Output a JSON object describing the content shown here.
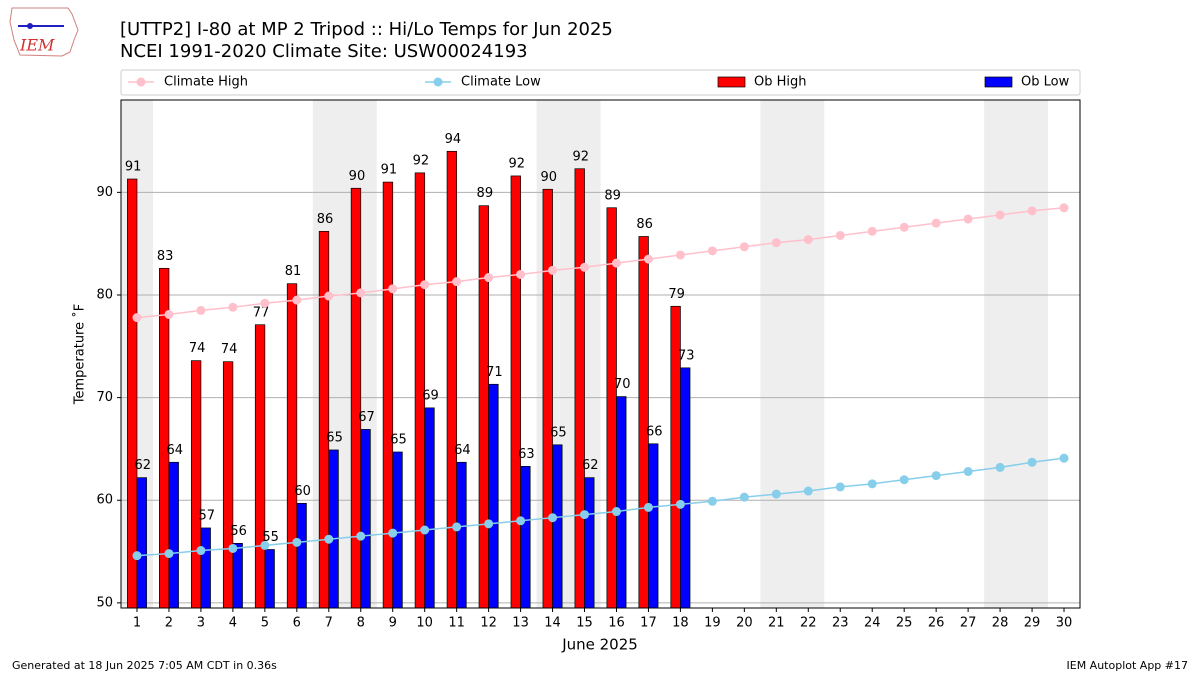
{
  "chart_data": {
    "type": "bar",
    "title": "[UTTP2] I-80 at MP 2 Tripod  :: Hi/Lo Temps for Jun 2025",
    "subtitle": "NCEI 1991-2020 Climate Site: USW00024193",
    "xlabel": "June 2025",
    "ylabel": "Temperature ˚F",
    "footer_left": "Generated at 18 Jun 2025 7:05 AM CDT in 0.36s",
    "footer_right": "IEM Autoplot App #17",
    "logo": "IEM",
    "x": [
      1,
      2,
      3,
      4,
      5,
      6,
      7,
      8,
      9,
      10,
      11,
      12,
      13,
      14,
      15,
      16,
      17,
      18,
      19,
      20,
      21,
      22,
      23,
      24,
      25,
      26,
      27,
      28,
      29,
      30
    ],
    "xlim": [
      0.5,
      30.5
    ],
    "xticks": [
      1,
      2,
      3,
      4,
      5,
      6,
      7,
      8,
      9,
      10,
      11,
      12,
      13,
      14,
      15,
      16,
      17,
      18,
      19,
      20,
      21,
      22,
      23,
      24,
      25,
      26,
      27,
      28,
      29,
      30
    ],
    "ylim": [
      49.5,
      99
    ],
    "yticks": [
      50,
      60,
      70,
      80,
      90
    ],
    "grid": true,
    "weekend_spans": [
      [
        0.5,
        1.5
      ],
      [
        6.5,
        8.5
      ],
      [
        13.5,
        15.5
      ],
      [
        20.5,
        22.5
      ],
      [
        27.5,
        29.5
      ]
    ],
    "series": [
      {
        "name": "Climate High",
        "kind": "line",
        "color": "#ffc0cb",
        "values": [
          77.8,
          78.1,
          78.5,
          78.8,
          79.2,
          79.5,
          79.9,
          80.2,
          80.6,
          81.0,
          81.3,
          81.7,
          82.0,
          82.4,
          82.7,
          83.1,
          83.5,
          83.9,
          84.3,
          84.7,
          85.1,
          85.4,
          85.8,
          86.2,
          86.6,
          87.0,
          87.4,
          87.8,
          88.2,
          88.5
        ]
      },
      {
        "name": "Climate Low",
        "kind": "line",
        "color": "#87ceeb",
        "values": [
          54.6,
          54.8,
          55.1,
          55.3,
          55.6,
          55.9,
          56.2,
          56.5,
          56.8,
          57.1,
          57.4,
          57.7,
          58.0,
          58.3,
          58.6,
          58.9,
          59.3,
          59.6,
          59.9,
          60.3,
          60.6,
          60.9,
          61.3,
          61.6,
          62.0,
          62.4,
          62.8,
          63.2,
          63.7,
          64.1
        ]
      },
      {
        "name": "Ob High",
        "kind": "bar",
        "color": "#ff0000",
        "values": [
          91.3,
          82.6,
          73.6,
          73.5,
          77.1,
          81.1,
          86.2,
          90.4,
          91.0,
          91.9,
          94.0,
          88.7,
          91.6,
          90.3,
          92.3,
          88.5,
          85.7,
          78.9,
          null,
          null,
          null,
          null,
          null,
          null,
          null,
          null,
          null,
          null,
          null,
          null
        ],
        "value_labels": [
          "91",
          "83",
          "74",
          "74",
          "77",
          "81",
          "86",
          "90",
          "91",
          "92",
          "94",
          "89",
          "92",
          "90",
          "92",
          "89",
          "86",
          "79",
          null,
          null,
          null,
          null,
          null,
          null,
          null,
          null,
          null,
          null,
          null,
          null
        ]
      },
      {
        "name": "Ob Low",
        "kind": "bar",
        "color": "#0000ff",
        "values": [
          62.2,
          63.7,
          57.3,
          55.8,
          55.2,
          59.7,
          64.9,
          66.9,
          64.7,
          69.0,
          63.7,
          71.3,
          63.3,
          65.4,
          62.2,
          70.1,
          65.5,
          72.9,
          null,
          null,
          null,
          null,
          null,
          null,
          null,
          null,
          null,
          null,
          null,
          null
        ],
        "value_labels": [
          "62",
          "64",
          "57",
          "56",
          "55",
          "60",
          "65",
          "67",
          "65",
          "69",
          "64",
          "71",
          "63",
          "65",
          "62",
          "70",
          "66",
          "73",
          null,
          null,
          null,
          null,
          null,
          null,
          null,
          null,
          null,
          null,
          null,
          null
        ]
      }
    ]
  }
}
